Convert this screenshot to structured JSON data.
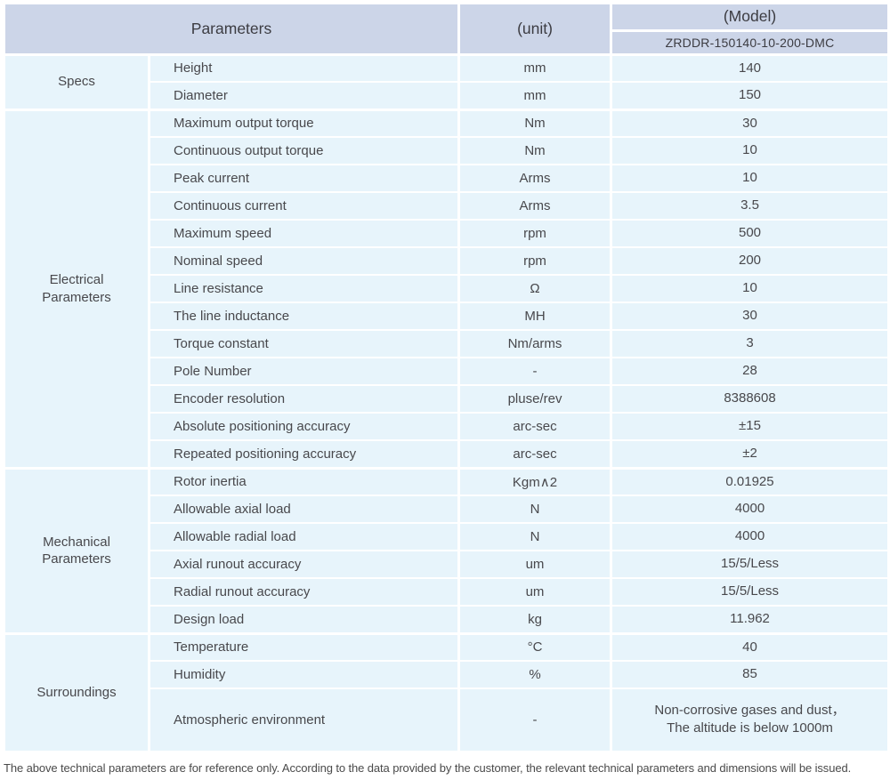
{
  "colors": {
    "header_bg": "#ccd5e8",
    "row_bg": "#e7f4fb",
    "border": "#ffffff",
    "text": "#48484c",
    "header_text": "#3c3c42",
    "footnote_text": "#4a4a4a"
  },
  "table": {
    "header": {
      "parameters_label": "Parameters",
      "unit_label": "(unit)",
      "model_label": "(Model)",
      "model_value": "ZRDDR-150140-10-200-DMC"
    },
    "groups": [
      {
        "id": "specs",
        "label": "Specs",
        "rows": [
          {
            "name": "Height",
            "unit": "mm",
            "value": "140"
          },
          {
            "name": "Diameter",
            "unit": "mm",
            "value": "150"
          }
        ]
      },
      {
        "id": "electrical-parameters",
        "label": "Electrical\nParameters",
        "rows": [
          {
            "name": "Maximum output torque",
            "unit": "Nm",
            "value": "30"
          },
          {
            "name": "Continuous output torque",
            "unit": "Nm",
            "value": "10"
          },
          {
            "name": "Peak current",
            "unit": "Arms",
            "value": "10"
          },
          {
            "name": "Continuous current",
            "unit": "Arms",
            "value": "3.5"
          },
          {
            "name": "Maximum speed",
            "unit": "rpm",
            "value": "500"
          },
          {
            "name": "Nominal speed",
            "unit": "rpm",
            "value": "200"
          },
          {
            "name": "Line resistance",
            "unit": "Ω",
            "value": "10"
          },
          {
            "name": "The line inductance",
            "unit": "MH",
            "value": "30"
          },
          {
            "name": "Torque constant",
            "unit": "Nm/arms",
            "value": "3"
          },
          {
            "name": "Pole Number",
            "unit": "-",
            "value": "28"
          },
          {
            "name": "Encoder resolution",
            "unit": "pluse/rev",
            "value": "8388608"
          },
          {
            "name": "Absolute positioning accuracy",
            "unit": "arc-sec",
            "value": "±15"
          },
          {
            "name": "Repeated positioning accuracy",
            "unit": "arc-sec",
            "value": "±2"
          }
        ]
      },
      {
        "id": "mechanical-parameters",
        "label": "Mechanical\nParameters",
        "rows": [
          {
            "name": "Rotor inertia",
            "unit": "Kgm∧2",
            "value": "0.01925"
          },
          {
            "name": "Allowable axial load",
            "unit": "N",
            "value": "4000"
          },
          {
            "name": "Allowable radial load",
            "unit": "N",
            "value": "4000"
          },
          {
            "name": "Axial runout accuracy",
            "unit": "um",
            "value": "15/5/Less"
          },
          {
            "name": "Radial runout accuracy",
            "unit": "um",
            "value": "15/5/Less"
          },
          {
            "name": "Design load",
            "unit": "kg",
            "value": "11.962"
          }
        ]
      },
      {
        "id": "surroundings",
        "label": "Surroundings",
        "rows": [
          {
            "name": "Temperature",
            "unit": "°C",
            "value": "40"
          },
          {
            "name": "Humidity",
            "unit": "%",
            "value": "85"
          },
          {
            "name": "Atmospheric environment",
            "unit": "-",
            "value": "Non-corrosive gases and dust，\nThe altitude is below 1000m",
            "tall": true
          }
        ]
      }
    ]
  },
  "footnote": "The above technical parameters are for reference only. According to the data provided by the customer, the relevant technical parameters and dimensions will be issued."
}
